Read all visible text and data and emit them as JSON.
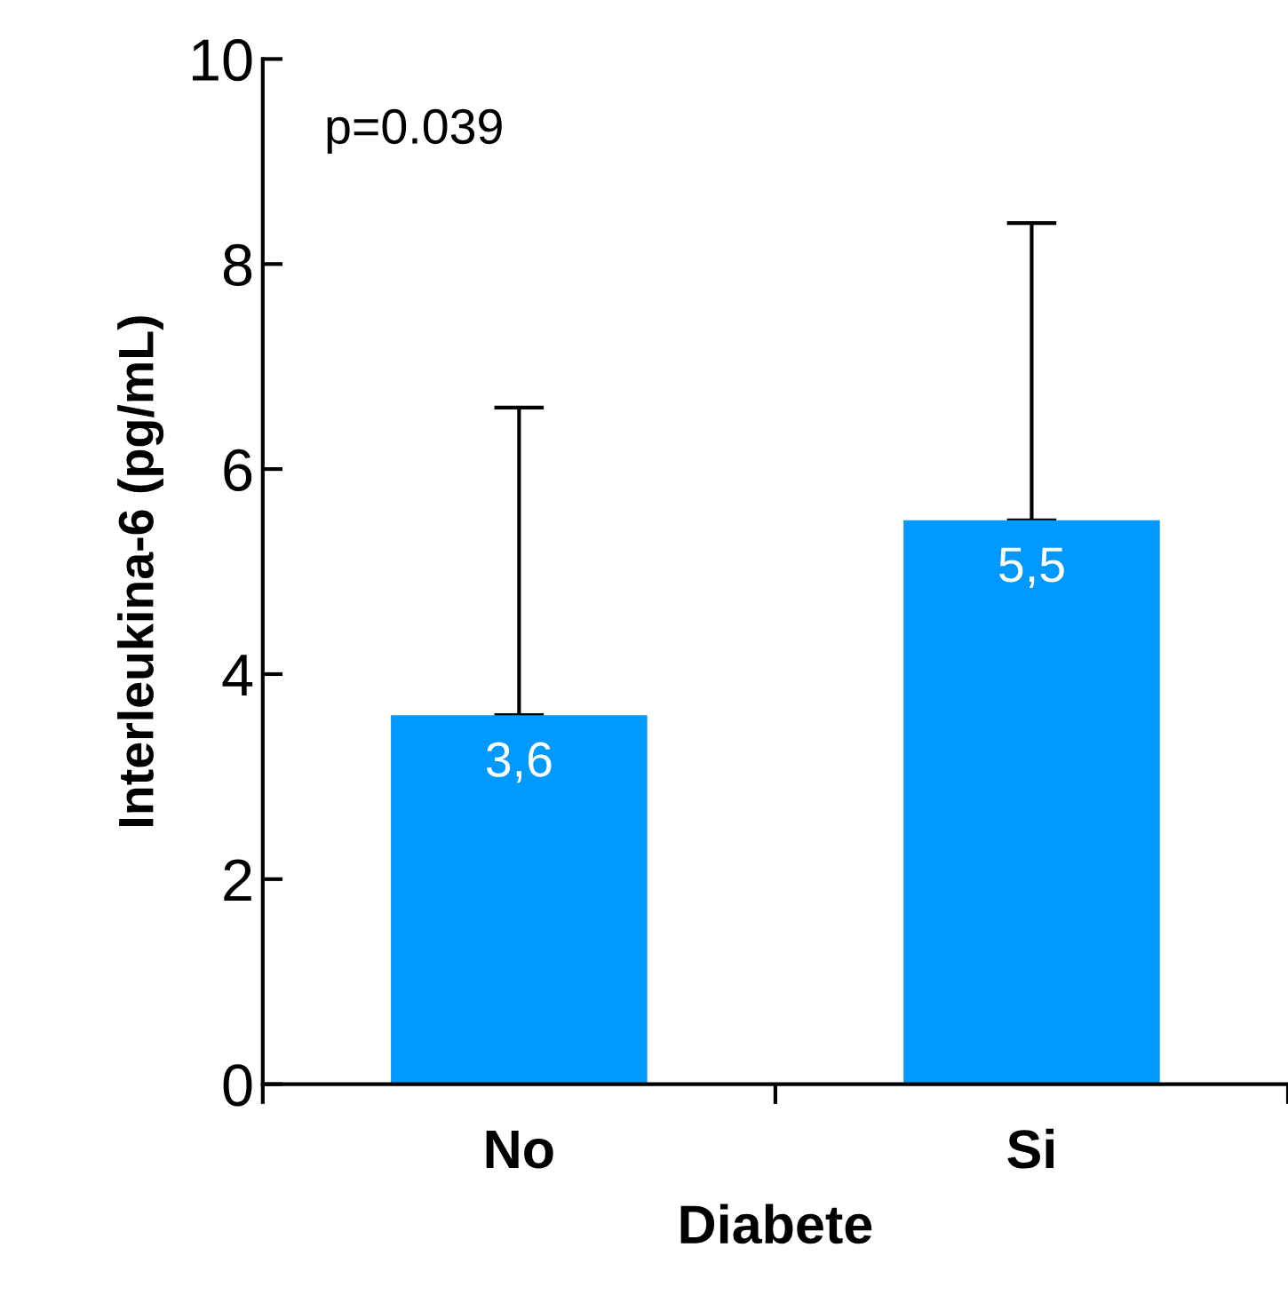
{
  "chart_data": {
    "type": "bar",
    "categories": [
      "No",
      "Si"
    ],
    "values": [
      3.6,
      5.5
    ],
    "color": "#0099ff",
    "errors": [
      [
        3.6,
        6.6
      ],
      [
        5.5,
        8.4
      ]
    ],
    "value_labels": [
      "3,6",
      "5,5"
    ],
    "xlabel": "Diabete",
    "ylabel": "Interleukina-6 (pg/mL)",
    "annotations": [
      "p=0.039"
    ],
    "ylim": [
      0,
      10
    ],
    "yticks": [
      0,
      2,
      4,
      6,
      8,
      10
    ],
    "grid": false,
    "legend": false
  }
}
